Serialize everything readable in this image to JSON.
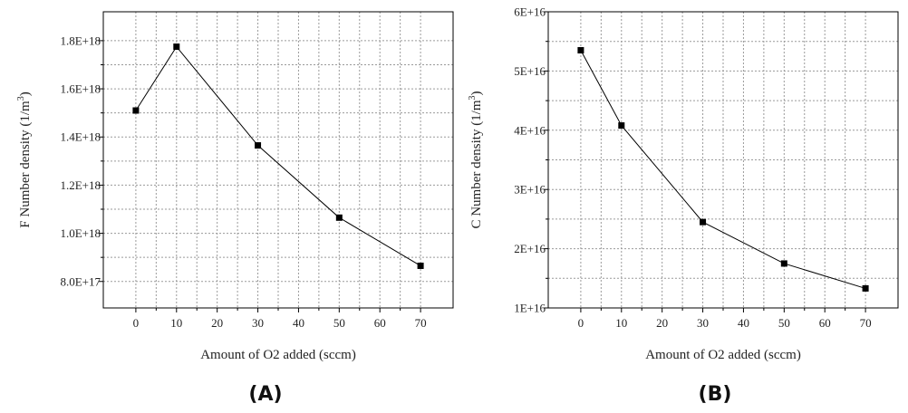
{
  "chart_data": [
    {
      "type": "line",
      "panel_label": "(A)",
      "xlabel": "Amount of O2 added (sccm)",
      "ylabel": "F Number density (1/m",
      "ylabel_sup": "3",
      "ylabel_end": ")",
      "xlim": [
        -8,
        78
      ],
      "ylim": [
        6.9e+17,
        1.92e+18
      ],
      "xticks": [
        0,
        10,
        20,
        30,
        40,
        50,
        60,
        70
      ],
      "xtick_labels": [
        "0",
        "10",
        "20",
        "30",
        "40",
        "50",
        "60",
        "70"
      ],
      "yticks": [
        8e+17,
        1e+18,
        1.2e+18,
        1.4e+18,
        1.6e+18,
        1.8e+18
      ],
      "ytick_labels": [
        "8.0E+17",
        "1.0E+18",
        "1.2E+18",
        "1.4E+18",
        "1.6E+18",
        "1.8E+18"
      ],
      "grid": true,
      "series": [
        {
          "x": [
            0,
            10,
            30,
            50,
            70
          ],
          "y": [
            1.51e+18,
            1.775e+18,
            1.365e+18,
            1.065e+18,
            8.65e+17
          ]
        }
      ]
    },
    {
      "type": "line",
      "panel_label": "(B)",
      "xlabel": "Amount of O2 added (sccm)",
      "ylabel": "C Number density (1/m",
      "ylabel_sup": "3",
      "ylabel_end": ")",
      "xlim": [
        -8,
        78
      ],
      "ylim": [
        1e+16,
        6e+16
      ],
      "xticks": [
        0,
        10,
        20,
        30,
        40,
        50,
        60,
        70
      ],
      "xtick_labels": [
        "0",
        "10",
        "20",
        "30",
        "40",
        "50",
        "60",
        "70"
      ],
      "yticks": [
        1e+16,
        2e+16,
        3e+16,
        4e+16,
        5e+16,
        6e+16
      ],
      "ytick_labels": [
        "1E+16",
        "2E+16",
        "3E+16",
        "4E+16",
        "5E+16",
        "6E+16"
      ],
      "grid": true,
      "series": [
        {
          "x": [
            0,
            10,
            30,
            50,
            70
          ],
          "y": [
            5.35e+16,
            4.08e+16,
            2.45e+16,
            1.75e+16,
            1.33e+16
          ]
        }
      ]
    }
  ]
}
